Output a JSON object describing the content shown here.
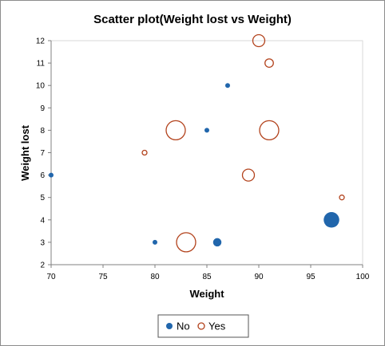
{
  "chart_data": {
    "type": "scatter",
    "title": "Scatter plot(Weight lost vs Weight)",
    "xlabel": "Weight",
    "ylabel": "Weight lost",
    "xlim": [
      70,
      100
    ],
    "ylim": [
      2,
      12
    ],
    "xticks": [
      "70",
      "75",
      "80",
      "85",
      "90",
      "95",
      "100"
    ],
    "yticks": [
      "2",
      "3",
      "4",
      "5",
      "6",
      "7",
      "8",
      "9",
      "10",
      "11",
      "12"
    ],
    "grid": false,
    "legend_position": "bottom",
    "series": [
      {
        "name": "No",
        "color": "#2166ac",
        "marker": "filled-circle",
        "points": [
          {
            "x": 70,
            "y": 6,
            "size": 1
          },
          {
            "x": 80,
            "y": 3,
            "size": 1
          },
          {
            "x": 85,
            "y": 8,
            "size": 1
          },
          {
            "x": 86,
            "y": 3,
            "size": 2
          },
          {
            "x": 87,
            "y": 10,
            "size": 1
          },
          {
            "x": 97,
            "y": 4,
            "size": 4
          }
        ]
      },
      {
        "name": "Yes",
        "color": "#b3431d",
        "marker": "hollow-circle",
        "points": [
          {
            "x": 79,
            "y": 7,
            "size": 1
          },
          {
            "x": 82,
            "y": 8,
            "size": 5
          },
          {
            "x": 83,
            "y": 3,
            "size": 5
          },
          {
            "x": 89,
            "y": 6,
            "size": 3
          },
          {
            "x": 90,
            "y": 12,
            "size": 3
          },
          {
            "x": 91,
            "y": 8,
            "size": 5
          },
          {
            "x": 91,
            "y": 11,
            "size": 2
          },
          {
            "x": 98,
            "y": 5,
            "size": 1
          }
        ]
      }
    ]
  }
}
